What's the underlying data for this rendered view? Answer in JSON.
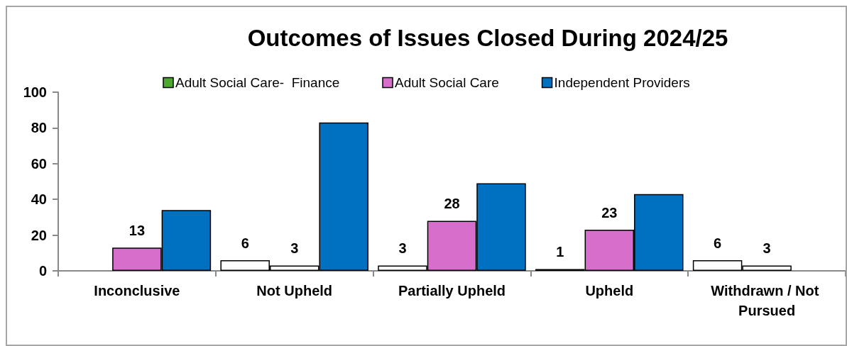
{
  "chart_data": {
    "type": "bar",
    "title": "Outcomes of Issues Closed During 2024/25",
    "categories": [
      "Inconclusive",
      "Not Upheld",
      "Partially Upheld",
      "Upheld",
      "Withdrawn / Not Pursued"
    ],
    "series": [
      {
        "name": "Adult Social Care-  Finance",
        "color": "#4ea72e",
        "colors": [
          null,
          "#ffffff",
          "#ffffff",
          "#ffffff",
          "#ffffff"
        ],
        "values": [
          null,
          6,
          3,
          1,
          6
        ],
        "value_labels": [
          null,
          "6",
          "3",
          "1",
          "6"
        ]
      },
      {
        "name": "Adult Social Care",
        "color": "#d86ecc",
        "colors": [
          "#d86ecc",
          "#ffffff",
          "#d86ecc",
          "#d86ecc",
          "#ffffff"
        ],
        "values": [
          13,
          3,
          28,
          23,
          3
        ],
        "value_labels": [
          "13",
          "3",
          "28",
          "23",
          "3"
        ]
      },
      {
        "name": "Independent Providers",
        "color": "#0070c0",
        "values": [
          34,
          83,
          49,
          43,
          null
        ]
      }
    ],
    "ylim": [
      0,
      100
    ],
    "yticks": [
      0,
      20,
      40,
      60,
      80,
      100
    ],
    "grid": false,
    "legend": "top"
  }
}
